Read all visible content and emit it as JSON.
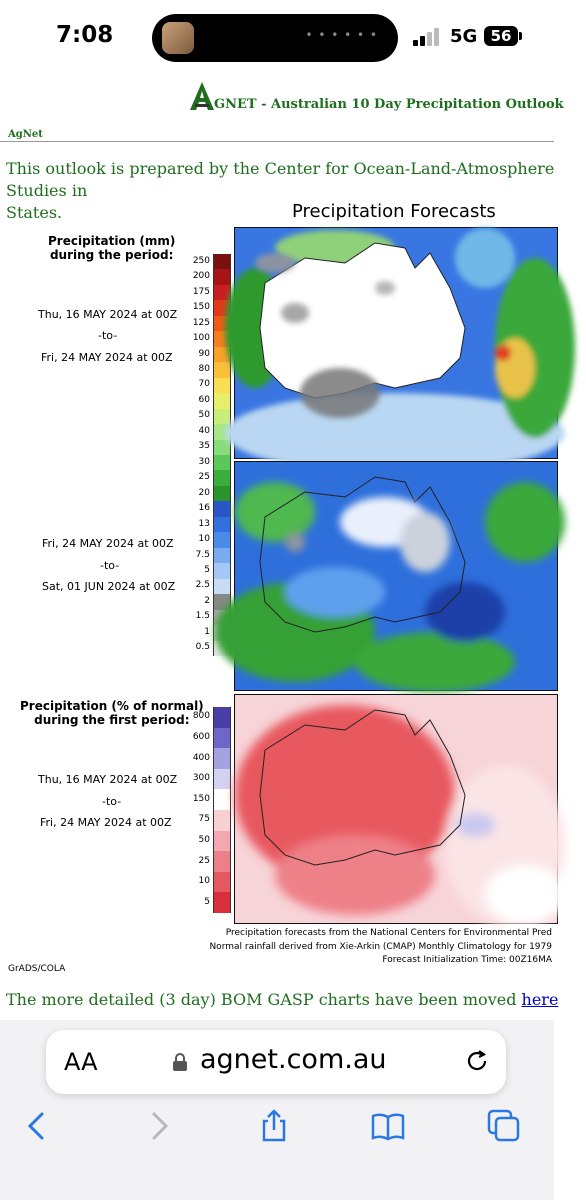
{
  "status_bar": {
    "time": "7:08",
    "network": "5G",
    "battery": "56"
  },
  "page": {
    "header_title": "GNET - Australian 10 Day Precipitation Outlook",
    "agnet_link": "AgNet",
    "intro_text": "This outlook is prepared by the Center for Ocean-Land-Atmosphere Studies in",
    "intro_text_line2": "States.",
    "figure_title": "Precipitation Forecasts",
    "panel1": {
      "heading_line1": "Precipitation (mm)",
      "heading_line2": "during the period:",
      "from": "Thu, 16 MAY 2024 at 00Z",
      "to": "-to-",
      "until": "Fri, 24 MAY 2024 at 00Z"
    },
    "panel2": {
      "from": "Fri, 24 MAY 2024 at 00Z",
      "to": "-to-",
      "until": "Sat, 01 JUN 2024 at 00Z"
    },
    "panel3": {
      "heading_line1": "Precipitation (% of normal)",
      "heading_line2": "during the first period:",
      "from": "Thu, 16 MAY 2024 at 00Z",
      "to": "-to-",
      "until": "Fri, 24 MAY 2024 at 00Z"
    },
    "mm_scale": [
      "250",
      "200",
      "175",
      "150",
      "125",
      "100",
      "90",
      "80",
      "70",
      "60",
      "50",
      "40",
      "35",
      "30",
      "25",
      "20",
      "16",
      "13",
      "10",
      "7.5",
      "5",
      "2.5",
      "2",
      "1.5",
      "1",
      "0.5"
    ],
    "pct_scale": [
      "800",
      "600",
      "400",
      "300",
      "150",
      "75",
      "50",
      "25",
      "10",
      "5"
    ],
    "footnote1": "Precipitation forecasts from the National Centers for Environmental Pred",
    "footnote2": "Normal rainfall derived from Xie-Arkin (CMAP) Monthly Climatology for 1979",
    "footnote3": "Forecast Initialization Time: 00Z16MA",
    "grads": "GrADS/COLA",
    "bottom_text": "The more detailed (3 day) BOM GASP charts have been moved ",
    "bottom_link": "here"
  },
  "browser": {
    "text_size_button": "AA",
    "url": "agnet.com.au"
  },
  "colors": {
    "agnet_green": "#1e6e1e",
    "link_blue": "#0000cc"
  }
}
